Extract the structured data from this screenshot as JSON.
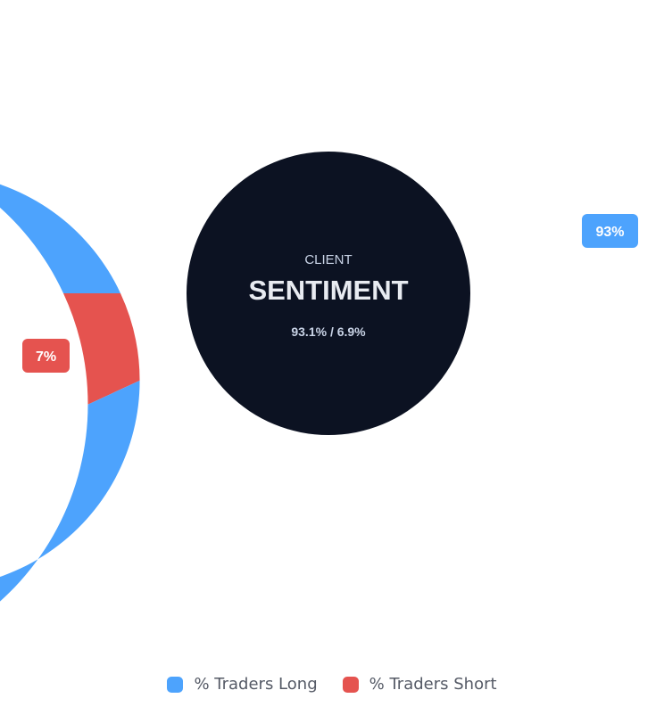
{
  "chart_data": {
    "type": "pie",
    "categories": [
      "% Traders Long",
      "% Traders Short"
    ],
    "values": [
      93.1,
      6.9
    ],
    "data_labels": [
      "93%",
      "7%"
    ],
    "colors": [
      "#4da3fd",
      "#e5534f"
    ],
    "legend_position": "bottom",
    "center": {
      "eyebrow": "CLIENT",
      "title": "SENTIMENT",
      "ratio": "93.1% / 6.9%",
      "background": "#0c1222"
    }
  },
  "legend": {
    "items": [
      {
        "label": "% Traders Long",
        "color": "#4da3fd"
      },
      {
        "label": "% Traders Short",
        "color": "#e5534f"
      }
    ]
  }
}
